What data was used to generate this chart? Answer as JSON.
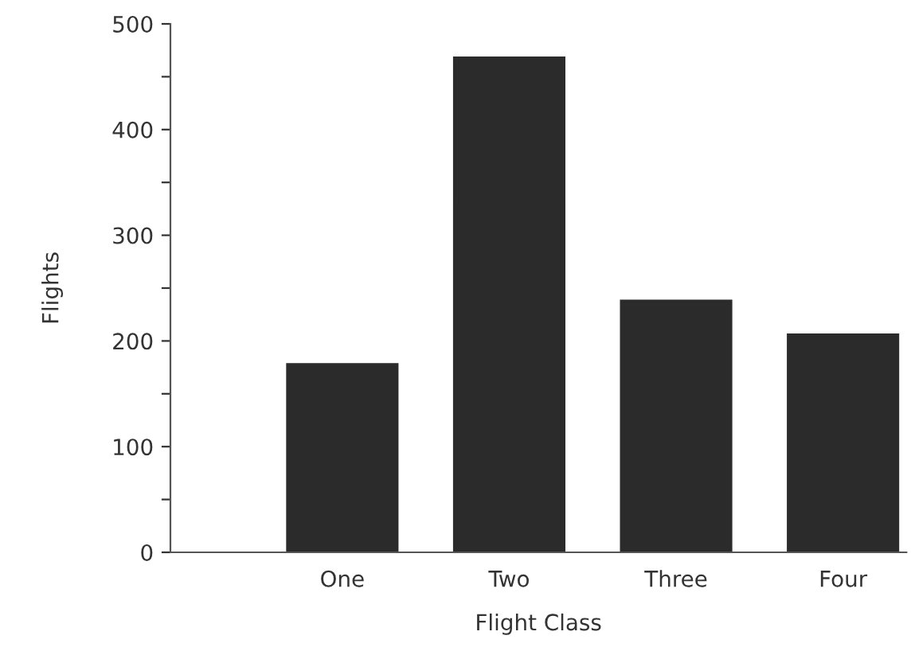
{
  "chart_data": {
    "type": "bar",
    "xlabel": "Flight Class",
    "ylabel": "Flights",
    "categories": [
      "One",
      "Two",
      "Three",
      "Four"
    ],
    "values": [
      178,
      468,
      238,
      206
    ],
    "color": "#2b2b2b",
    "ylim": [
      0,
      500
    ],
    "yticks": [
      0,
      {
        "value": 50,
        "label": null
      },
      100,
      {
        "value": 150,
        "label": null
      },
      200,
      {
        "value": 250,
        "label": null
      },
      300,
      {
        "value": 350,
        "label": null
      },
      400,
      {
        "value": 450,
        "label": null
      },
      500
    ],
    "grid": false,
    "legend": false
  }
}
